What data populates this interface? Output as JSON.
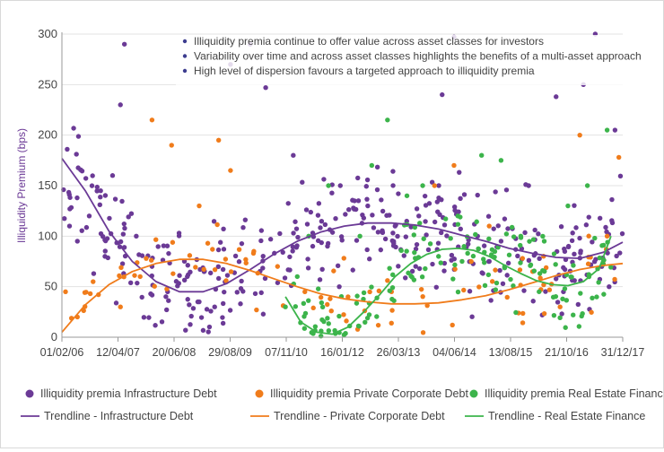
{
  "chart_data": {
    "type": "scatter",
    "ylabel": "Illiquidity Premium (bps)",
    "ylim": [
      0,
      300
    ],
    "yticks": [
      0,
      50,
      100,
      150,
      200,
      250,
      300
    ],
    "xlim": [
      "2006-02-01",
      "2017-12-31"
    ],
    "xtick_labels": [
      "01/02/06",
      "12/04/07",
      "20/06/08",
      "29/08/09",
      "07/11/10",
      "16/01/12",
      "26/03/13",
      "04/06/14",
      "13/08/15",
      "21/10/16",
      "31/12/17"
    ],
    "grid": "horizontal",
    "annotations": [
      "Illiquidity premia continue to offer value across asset classes for investors",
      "Variability over time and across asset classes highlights the benefits of a multi-asset approach",
      "High level of dispersion favours a targeted approach to illiquidity premia"
    ],
    "legend_position": "bottom",
    "colors": {
      "infra": "#6b3a96",
      "corporate": "#f07c1b",
      "realestate": "#3cb44b",
      "axis": "#9a9a9a",
      "text": "#444444"
    },
    "series": [
      {
        "name": "Illiquidity premia Infrastructure Debt",
        "color": "#6b3a96",
        "point_count": 420,
        "points": [
          [
            "2006-04-01",
            110
          ],
          [
            "2006-06-01",
            95
          ],
          [
            "2006-09-01",
            120
          ],
          [
            "2007-01-01",
            80
          ],
          [
            "2007-03-01",
            160
          ],
          [
            "2007-05-01",
            230
          ],
          [
            "2007-06-01",
            290
          ],
          [
            "2007-09-01",
            100
          ],
          [
            "2008-01-01",
            70
          ],
          [
            "2008-05-01",
            45
          ],
          [
            "2008-10-01",
            60
          ],
          [
            "2009-05-01",
            30
          ],
          [
            "2009-09-01",
            270
          ],
          [
            "2010-02-01",
            290
          ],
          [
            "2010-06-01",
            247
          ],
          [
            "2011-01-01",
            180
          ],
          [
            "2011-06-01",
            90
          ],
          [
            "2012-01-01",
            150
          ],
          [
            "2012-08-01",
            130
          ],
          [
            "2013-03-01",
            110
          ],
          [
            "2013-09-01",
            120
          ],
          [
            "2014-03-01",
            240
          ],
          [
            "2014-06-01",
            297
          ],
          [
            "2014-12-01",
            100
          ],
          [
            "2015-06-01",
            95
          ],
          [
            "2016-01-01",
            150
          ],
          [
            "2016-08-01",
            238
          ],
          [
            "2017-03-01",
            250
          ],
          [
            "2017-06-01",
            300
          ],
          [
            "2017-11-01",
            205
          ]
        ]
      },
      {
        "name": "Illiquidity premia Private Corporate Debt",
        "color": "#f07c1b",
        "point_count": 110,
        "points": [
          [
            "2006-03-01",
            45
          ],
          [
            "2006-06-01",
            20
          ],
          [
            "2006-10-01",
            55
          ],
          [
            "2007-05-01",
            30
          ],
          [
            "2007-10-01",
            60
          ],
          [
            "2008-01-01",
            215
          ],
          [
            "2008-06-01",
            190
          ],
          [
            "2009-01-01",
            130
          ],
          [
            "2009-06-01",
            195
          ],
          [
            "2009-09-01",
            165
          ],
          [
            "2010-03-01",
            85
          ],
          [
            "2010-09-01",
            70
          ],
          [
            "2011-04-01",
            45
          ],
          [
            "2012-03-01",
            40
          ],
          [
            "2013-02-01",
            45
          ],
          [
            "2014-01-01",
            150
          ],
          [
            "2014-06-01",
            170
          ],
          [
            "2015-03-01",
            110
          ],
          [
            "2016-02-01",
            65
          ],
          [
            "2016-09-01",
            30
          ],
          [
            "2017-02-01",
            200
          ],
          [
            "2017-09-01",
            100
          ],
          [
            "2017-12-01",
            178
          ]
        ]
      },
      {
        "name": "Illiquidity premia Real Estate Finance",
        "color": "#3cb44b",
        "point_count": 170,
        "points": [
          [
            "2010-11-01",
            30
          ],
          [
            "2011-02-01",
            60
          ],
          [
            "2011-05-01",
            100
          ],
          [
            "2011-10-01",
            150
          ],
          [
            "2012-06-01",
            100
          ],
          [
            "2012-09-01",
            170
          ],
          [
            "2013-01-01",
            215
          ],
          [
            "2013-06-01",
            140
          ],
          [
            "2013-10-01",
            150
          ],
          [
            "2014-02-01",
            80
          ],
          [
            "2014-07-01",
            120
          ],
          [
            "2015-01-01",
            180
          ],
          [
            "2015-06-01",
            175
          ],
          [
            "2015-11-01",
            100
          ],
          [
            "2016-05-01",
            95
          ],
          [
            "2016-11-01",
            130
          ],
          [
            "2017-04-01",
            150
          ],
          [
            "2017-09-01",
            205
          ]
        ]
      }
    ],
    "trendlines": [
      {
        "name": "Trendline - Infrastructure Debt",
        "color": "#6b3a96",
        "points": [
          [
            "2006-02-01",
            177
          ],
          [
            "2006-08-01",
            145
          ],
          [
            "2007-02-01",
            105
          ],
          [
            "2007-08-01",
            75
          ],
          [
            "2008-02-01",
            55
          ],
          [
            "2008-08-01",
            45
          ],
          [
            "2009-02-01",
            45
          ],
          [
            "2009-08-01",
            53
          ],
          [
            "2010-02-01",
            67
          ],
          [
            "2010-08-01",
            82
          ],
          [
            "2011-02-01",
            95
          ],
          [
            "2011-08-01",
            104
          ],
          [
            "2012-02-01",
            110
          ],
          [
            "2012-08-01",
            113
          ],
          [
            "2013-02-01",
            113
          ],
          [
            "2013-08-01",
            111
          ],
          [
            "2014-02-01",
            107
          ],
          [
            "2014-08-01",
            101
          ],
          [
            "2015-02-01",
            95
          ],
          [
            "2015-08-01",
            88
          ],
          [
            "2016-02-01",
            83
          ],
          [
            "2016-08-01",
            79
          ],
          [
            "2017-02-01",
            78
          ],
          [
            "2017-08-01",
            84
          ],
          [
            "2017-12-31",
            94
          ]
        ]
      },
      {
        "name": "Trendline - Private Corporate Debt",
        "color": "#f07c1b",
        "points": [
          [
            "2006-02-01",
            5
          ],
          [
            "2006-08-01",
            32
          ],
          [
            "2007-02-01",
            52
          ],
          [
            "2007-08-01",
            65
          ],
          [
            "2008-02-01",
            73
          ],
          [
            "2008-08-01",
            77
          ],
          [
            "2009-02-01",
            77
          ],
          [
            "2009-08-01",
            73
          ],
          [
            "2010-02-01",
            66
          ],
          [
            "2010-08-01",
            58
          ],
          [
            "2011-02-01",
            50
          ],
          [
            "2011-08-01",
            43
          ],
          [
            "2012-02-01",
            38
          ],
          [
            "2012-08-01",
            35
          ],
          [
            "2013-02-01",
            33
          ],
          [
            "2013-08-01",
            33
          ],
          [
            "2014-02-01",
            34
          ],
          [
            "2014-08-01",
            37
          ],
          [
            "2015-02-01",
            41
          ],
          [
            "2015-08-01",
            47
          ],
          [
            "2016-02-01",
            54
          ],
          [
            "2016-08-01",
            61
          ],
          [
            "2017-02-01",
            67
          ],
          [
            "2017-08-01",
            71
          ],
          [
            "2017-12-31",
            73
          ]
        ]
      },
      {
        "name": "Trendline - Real Estate Finance",
        "color": "#3cb44b",
        "points": [
          [
            "2010-11-01",
            40
          ],
          [
            "2011-03-01",
            15
          ],
          [
            "2011-07-01",
            5
          ],
          [
            "2011-11-01",
            3
          ],
          [
            "2012-03-01",
            10
          ],
          [
            "2012-07-01",
            25
          ],
          [
            "2012-11-01",
            42
          ],
          [
            "2013-03-01",
            60
          ],
          [
            "2013-07-01",
            73
          ],
          [
            "2013-11-01",
            82
          ],
          [
            "2014-03-01",
            87
          ],
          [
            "2014-07-01",
            88
          ],
          [
            "2014-11-01",
            86
          ],
          [
            "2015-03-01",
            80
          ],
          [
            "2015-07-01",
            71
          ],
          [
            "2015-11-01",
            63
          ],
          [
            "2016-03-01",
            56
          ],
          [
            "2016-07-01",
            52
          ],
          [
            "2016-11-01",
            51
          ],
          [
            "2017-03-01",
            55
          ],
          [
            "2017-07-01",
            68
          ],
          [
            "2017-10-01",
            100
          ]
        ]
      }
    ]
  }
}
